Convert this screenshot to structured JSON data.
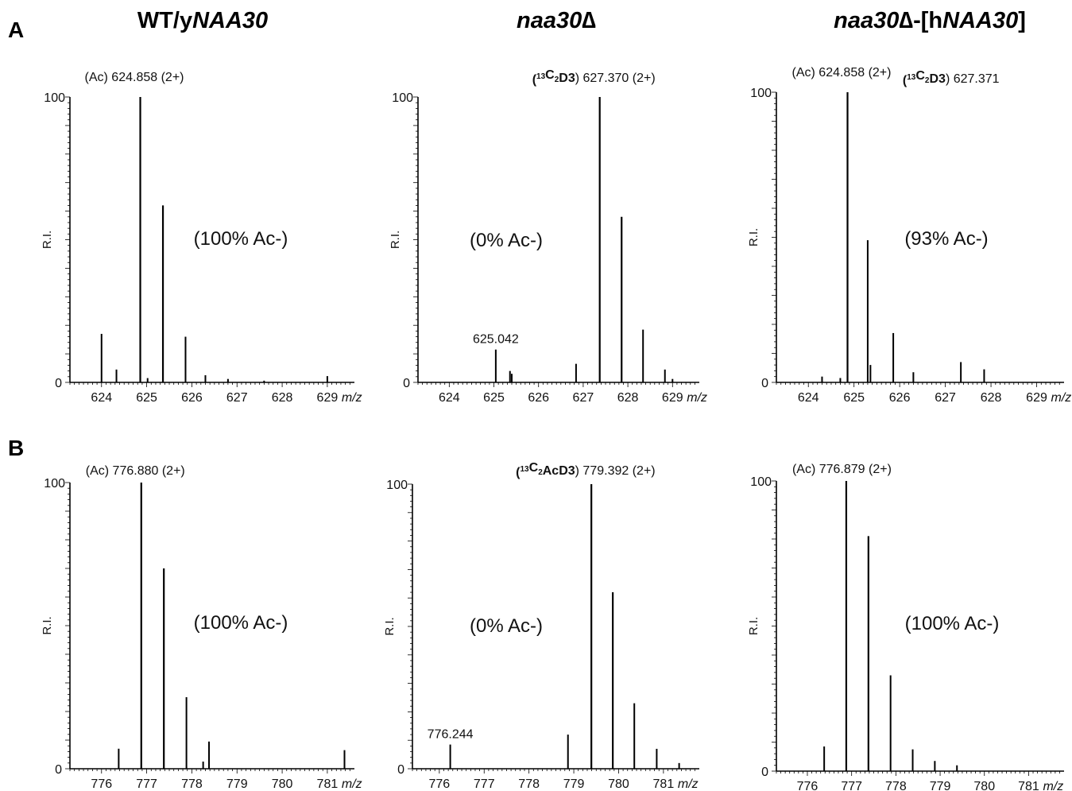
{
  "figure": {
    "row_labels": [
      "A",
      "B"
    ],
    "column_titles": [
      {
        "pre": "WT/y",
        "italic": "NAA30",
        "post": ""
      },
      {
        "pre": "",
        "italic": "naa30",
        "post": "∆"
      },
      {
        "pre": "",
        "italic": "naa30",
        "post": "∆-[h",
        "italic2": "NAA30",
        "post2": "]"
      }
    ],
    "ylabel": "R.I.",
    "xunit": "m/z"
  },
  "chart_data": [
    {
      "type": "bar",
      "row": "A",
      "column": 1,
      "xlim": [
        623.3,
        629.6
      ],
      "ylim": [
        0,
        100
      ],
      "xticks": [
        624,
        625,
        626,
        627,
        628,
        629
      ],
      "ytick_labels": [
        "0",
        "100"
      ],
      "x": [
        624.0,
        624.33,
        624.858,
        625.02,
        625.36,
        625.86,
        626.3,
        626.8,
        627.6,
        629.0
      ],
      "values": [
        17,
        4.5,
        100,
        1.5,
        62,
        16,
        2.5,
        1.2,
        0.6,
        2.2
      ],
      "labels": [
        {
          "text": "(Ac) 624.858 (2+)",
          "x": 624.858
        }
      ],
      "annotation": "(100% Ac-)"
    },
    {
      "type": "bar",
      "row": "A",
      "column": 2,
      "xlim": [
        623.3,
        629.6
      ],
      "ylim": [
        0,
        100
      ],
      "xticks": [
        624,
        625,
        626,
        627,
        628,
        629
      ],
      "ytick_labels": [
        "0",
        "100"
      ],
      "x": [
        625.042,
        625.36,
        625.4,
        626.84,
        627.37,
        627.86,
        628.34,
        628.83,
        629.0
      ],
      "values": [
        11.5,
        4,
        3,
        6.5,
        100,
        58,
        18.5,
        4.5,
        1.2
      ],
      "labels": [
        {
          "text": "625.042",
          "x": 625.042
        },
        {
          "sup": "13",
          "pre": "(",
          "bold_a": "C",
          "sub": "2",
          "bold_b": "D3",
          "post": ") 627.370 (2+)",
          "x": 627.37
        }
      ],
      "annotation": "(0% Ac-)"
    },
    {
      "type": "bar",
      "row": "A",
      "column": 3,
      "xlim": [
        623.3,
        629.6
      ],
      "ylim": [
        0,
        100
      ],
      "xticks": [
        624,
        625,
        626,
        627,
        628,
        629
      ],
      "ytick_labels": [
        "0",
        "100"
      ],
      "x": [
        624.3,
        624.7,
        624.858,
        625.3,
        625.36,
        625.86,
        626.3,
        627.34,
        627.85
      ],
      "values": [
        2,
        1.5,
        100,
        49,
        6,
        17,
        3.5,
        7,
        4.5
      ],
      "labels": [
        {
          "text": "(Ac) 624.858 (2+)",
          "x": 624.858
        },
        {
          "sup": "13",
          "pre": "(",
          "bold_a": "C",
          "sub": "2",
          "bold_b": "D3",
          "post": ") 627.371",
          "x": 627.371
        }
      ],
      "annotation": "(93% Ac-)"
    },
    {
      "type": "bar",
      "row": "B",
      "column": 1,
      "xlim": [
        775.3,
        781.6
      ],
      "ylim": [
        0,
        100
      ],
      "xticks": [
        776,
        777,
        778,
        779,
        780,
        781
      ],
      "ytick_labels": [
        "0",
        "100"
      ],
      "x": [
        776.38,
        776.88,
        777.38,
        777.88,
        778.25,
        778.38,
        781.38
      ],
      "values": [
        7,
        100,
        70,
        25,
        2.5,
        9.5,
        6.5
      ],
      "labels": [
        {
          "text": "(Ac) 776.880 (2+)",
          "x": 776.88
        }
      ],
      "annotation": "(100% Ac-)"
    },
    {
      "type": "bar",
      "row": "B",
      "column": 2,
      "xlim": [
        775.4,
        781.8
      ],
      "ylim": [
        0,
        100
      ],
      "xticks": [
        776,
        777,
        778,
        779,
        780,
        781
      ],
      "ytick_labels": [
        "0",
        "100"
      ],
      "x": [
        776.244,
        778.87,
        779.392,
        779.87,
        780.35,
        780.85,
        781.35
      ],
      "values": [
        8.5,
        12,
        100,
        62,
        23,
        7,
        2
      ],
      "labels": [
        {
          "text": "776.244",
          "x": 776.244
        },
        {
          "sup": "13",
          "pre": "(",
          "bold_a": "C",
          "sub": "2",
          "bold_b": "AcD3",
          "post": ") 779.392 (2+)",
          "x": 779.392
        }
      ],
      "annotation": "(0% Ac-)"
    },
    {
      "type": "bar",
      "row": "B",
      "column": 3,
      "xlim": [
        775.3,
        781.8
      ],
      "ylim": [
        0,
        100
      ],
      "xticks": [
        776,
        777,
        778,
        779,
        780,
        781
      ],
      "ytick_labels": [
        "0",
        "100"
      ],
      "x": [
        776.38,
        776.879,
        777.38,
        777.88,
        778.38,
        778.88,
        779.38
      ],
      "values": [
        8.5,
        100,
        81,
        33,
        7.5,
        3.5,
        2
      ],
      "labels": [
        {
          "text": "(Ac) 776.879 (2+)",
          "x": 776.879
        }
      ],
      "annotation": "(100% Ac-)"
    }
  ]
}
